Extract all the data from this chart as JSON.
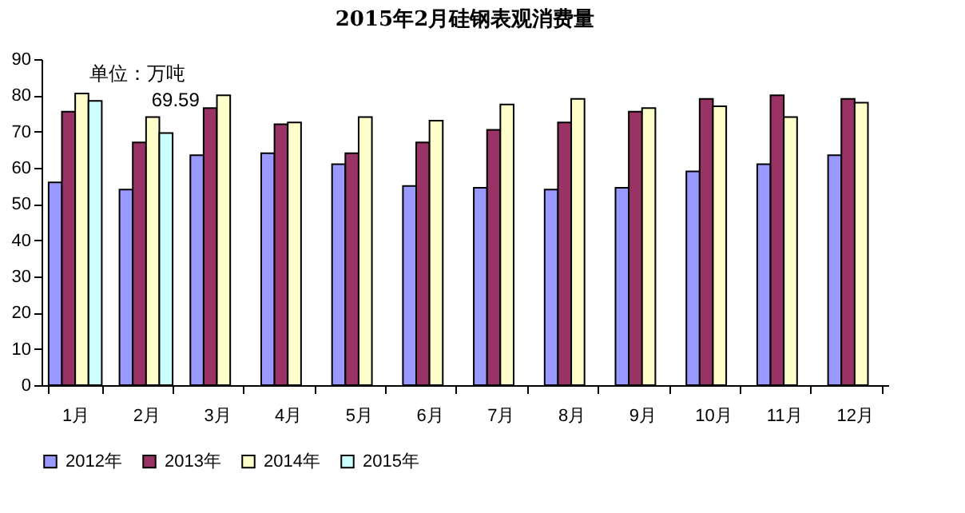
{
  "chart_data": {
    "type": "bar",
    "title": "2015年2月硅钢表观消费量",
    "categories": [
      "1月",
      "2月",
      "3月",
      "4月",
      "5月",
      "6月",
      "7月",
      "8月",
      "9月",
      "10月",
      "11月",
      "12月"
    ],
    "series": [
      {
        "name": "2012年",
        "color": "#9999ff",
        "values": [
          56,
          54,
          63.5,
          64,
          61,
          55,
          54.5,
          54,
          54.5,
          59,
          61,
          63.5
        ]
      },
      {
        "name": "2013年",
        "color": "#993366",
        "values": [
          75.5,
          67,
          76.5,
          72,
          64,
          67,
          70.5,
          72.5,
          75.5,
          79,
          80,
          79
        ]
      },
      {
        "name": "2014年",
        "color": "#ffffcc",
        "values": [
          80.5,
          74,
          80,
          72.5,
          74,
          73,
          77.5,
          79,
          76.5,
          77,
          74,
          78
        ]
      },
      {
        "name": "2015年",
        "color": "#ccffff",
        "values": [
          78.5,
          69.59,
          null,
          null,
          null,
          null,
          null,
          null,
          null,
          null,
          null,
          null
        ],
        "value_labels": [
          null,
          "69.59",
          null,
          null,
          null,
          null,
          null,
          null,
          null,
          null,
          null,
          null
        ]
      }
    ],
    "annotations": [
      "单位：万吨"
    ],
    "ylim": [
      0,
      90
    ],
    "yticks": [
      0,
      10,
      20,
      30,
      40,
      50,
      60,
      70,
      80,
      90
    ],
    "grid": false,
    "legend": "bottom"
  }
}
